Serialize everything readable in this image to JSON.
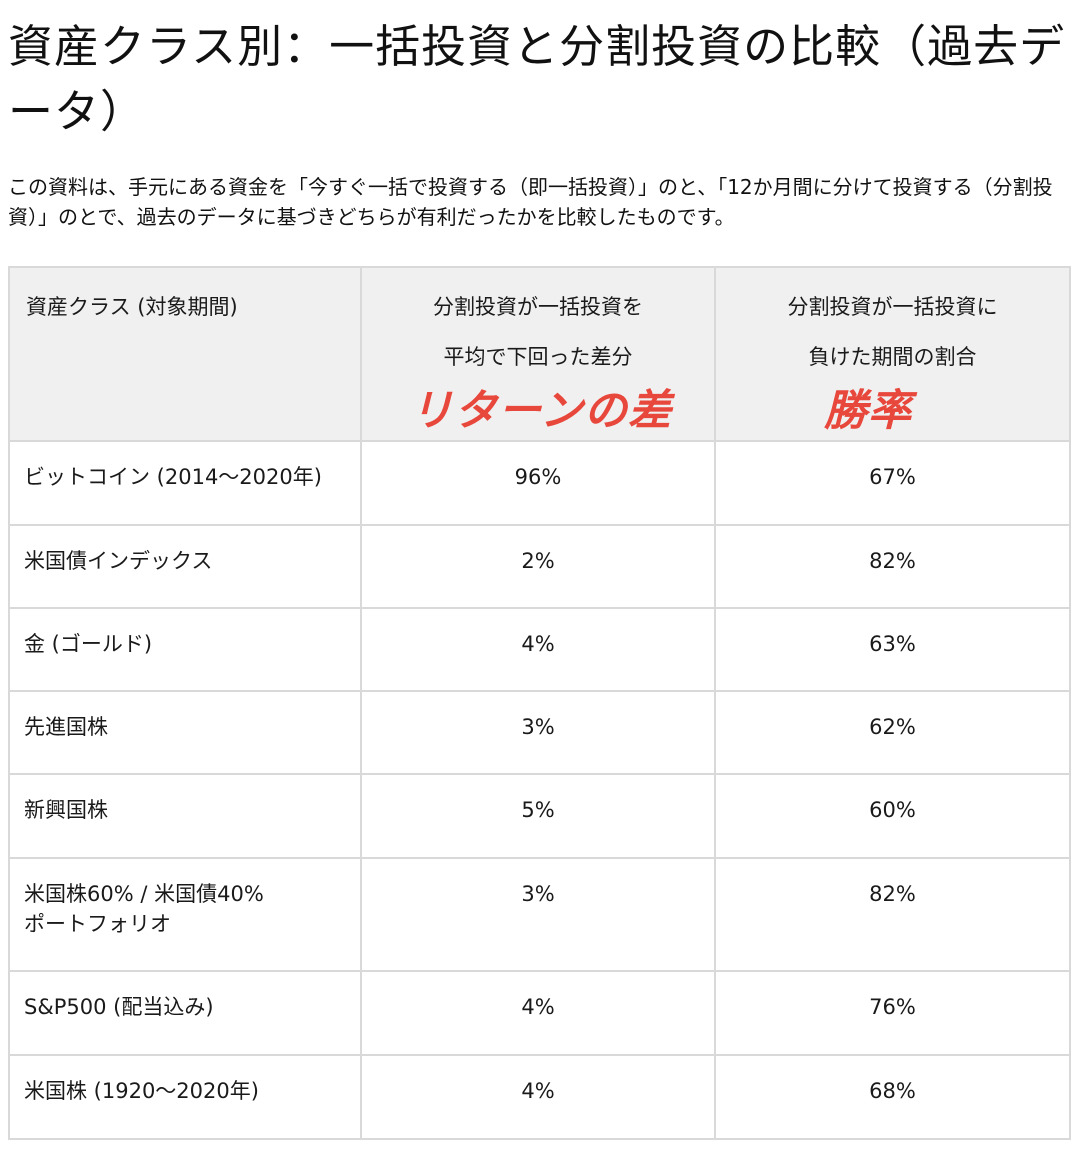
{
  "title": "資産クラス別：一括投資と分割投資の比較（過去データ）",
  "intro": "この資料は、手元にある資金を「今すぐ一括で投資する（即一括投資）」のと、「12か月間に分けて投資する（分割投資）」のとで、過去のデータに基づきどちらが有利だったかを比較したものです。",
  "table": {
    "headers": {
      "asset": "資産クラス (対象期間)",
      "return_diff_line1": "分割投資が一括投資を",
      "return_diff_line2": "平均で下回った差分",
      "return_diff_annotation": "リターンの差",
      "loss_ratio_line1": "分割投資が一括投資に",
      "loss_ratio_line2": "負けた期間の割合",
      "loss_ratio_annotation": "勝率"
    },
    "rows": [
      {
        "asset": "ビットコイン (2014～2020年)",
        "return_diff": "96%",
        "loss_ratio": "67%"
      },
      {
        "asset": "米国債インデックス",
        "return_diff": "2%",
        "loss_ratio": "82%"
      },
      {
        "asset": "金 (ゴールド)",
        "return_diff": "4%",
        "loss_ratio": "63%"
      },
      {
        "asset": "先進国株",
        "return_diff": "3%",
        "loss_ratio": "62%"
      },
      {
        "asset": "新興国株",
        "return_diff": "5%",
        "loss_ratio": "60%"
      },
      {
        "asset_line1": "米国株60% / 米国債40%",
        "asset_line2": "ポートフォリオ",
        "return_diff": "3%",
        "loss_ratio": "82%"
      },
      {
        "asset": "S&P500 (配当込み)",
        "return_diff": "4%",
        "loss_ratio": "76%"
      },
      {
        "asset": "米国株 (1920～2020年)",
        "return_diff": "4%",
        "loss_ratio": "68%"
      }
    ]
  },
  "colors": {
    "annotation": "#e8473c",
    "header_bg": "#f0f0f0",
    "border": "#d9d9d9"
  }
}
